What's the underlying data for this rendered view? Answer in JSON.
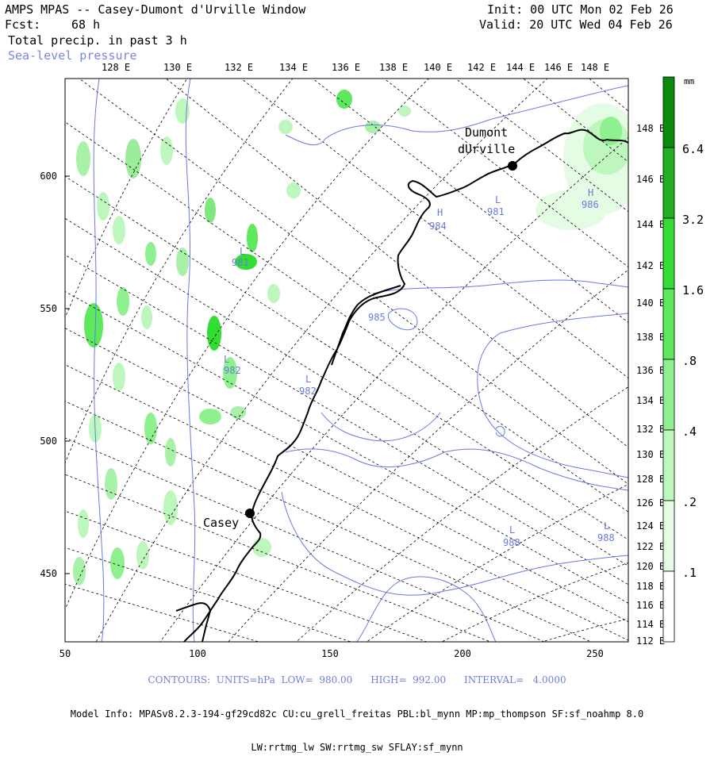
{
  "header": {
    "title": "AMPS MPAS -- Casey-Dumont d'Urville Window",
    "forecast_label": "Fcst:",
    "forecast_value": "68 h",
    "field_label": "Total precip. in past 3 h",
    "overlay_label": "Sea-level pressure",
    "init": "Init: 00 UTC Mon 02 Feb 26",
    "valid": "Valid: 20 UTC Wed 04 Feb 26"
  },
  "axes": {
    "top_ticks": [
      "128 E",
      "130 E",
      "132 E",
      "134 E",
      "136 E",
      "138 E",
      "140 E",
      "142 E",
      "144 E",
      "146 E",
      "148 E"
    ],
    "left_ticks": [
      "600",
      "550",
      "500",
      "450"
    ],
    "bottom_ticks": [
      "50",
      "100",
      "150",
      "200",
      "250"
    ],
    "right_ticks": [
      "148 E",
      "146 E",
      "144 E",
      "142 E",
      "140 E",
      "138 E",
      "136 E",
      "134 E",
      "132 E",
      "130 E",
      "128 E",
      "126 E",
      "124 E",
      "122 E",
      "120 E",
      "118 E",
      "116 E",
      "114 E",
      "112 E"
    ]
  },
  "colorbar": {
    "units": "mm",
    "labels": [
      "6.4",
      "3.2",
      "1.6",
      ".8",
      ".4",
      ".2",
      ".1"
    ],
    "colors": [
      "#0a8a0a",
      "#22b022",
      "#33dd33",
      "#5ee85e",
      "#8ef08e",
      "#bdf7bd",
      "#e4fbe4",
      "#ffffff"
    ]
  },
  "stations": [
    {
      "name": "Dumont\ndUrville",
      "line1": "Dumont",
      "line2": "dUrville"
    },
    {
      "name": "Casey",
      "line1": "Casey"
    }
  ],
  "pressure_labels": [
    {
      "type": "L",
      "value": "981"
    },
    {
      "type": "L",
      "value": "981"
    },
    {
      "type": "H",
      "value": "986"
    },
    {
      "type": "H",
      "value": "984"
    },
    {
      "type": "",
      "value": "985"
    },
    {
      "type": "L",
      "value": "982"
    },
    {
      "type": "L",
      "value": "982"
    },
    {
      "type": "L",
      "value": "988"
    },
    {
      "type": "L",
      "value": "988"
    }
  ],
  "footer": {
    "contours": "CONTOURS:  UNITS=hPa  LOW=  980.00      HIGH=  992.00      INTERVAL=   4.0000",
    "model_info": "Model Info: MPASv8.2.3-194-gf29cd82c CU:cu_grell_freitas PBL:bl_mynn MP:mp_thompson SF:sf_noahmp 8.0",
    "model_info2": "LW:rrtmg_lw SW:rrtmg_sw SFLAY:sf_mynn"
  }
}
